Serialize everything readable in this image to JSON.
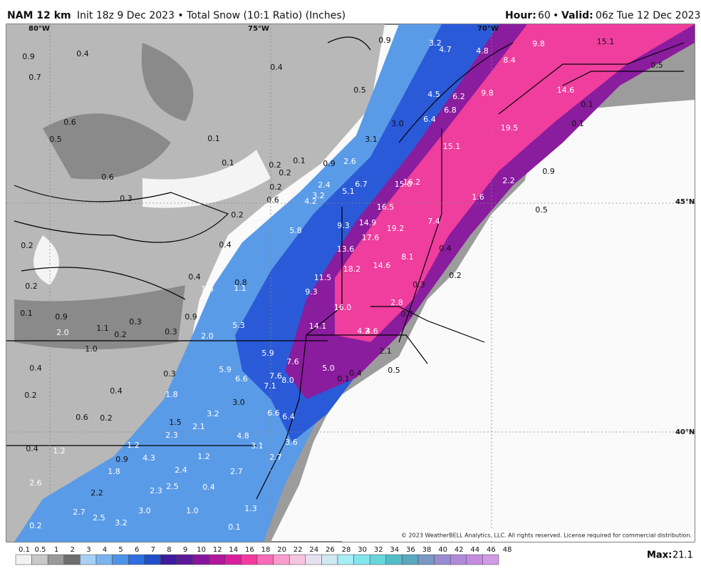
{
  "header": {
    "model": "NAM 12 km",
    "info": "Init 18z 9 Dec 2023 • Total Snow (10:1 Ratio) (Inches)",
    "hour_label": "Hour:",
    "hour": "60",
    "sep": "•",
    "valid_label": "Valid:",
    "valid": "06z Tue 12 Dec 2023"
  },
  "map": {
    "grid_labels": [
      "80°W",
      "75°W",
      "70°W",
      "45°N",
      "40°N"
    ],
    "copyright": "© 2023 WeatherBELL Analytics, LLC. All rights reserved. License required for commercial distribution.",
    "values": [
      "0.9",
      "0.4",
      "0.7",
      "0.6",
      "0.5",
      "0.1",
      "0.6",
      "0.3",
      "0.1",
      "0.4",
      "0.5",
      "0.9",
      "0.2",
      "0.2",
      "0.1",
      "0.2",
      "0.6",
      "0.9",
      "2.6",
      "2.4",
      "4.2",
      "3.2",
      "5.1",
      "6.7",
      "3.1",
      "3.0",
      "6.4",
      "6.8",
      "4.5",
      "6.2",
      "9.8",
      "3.2",
      "4.7",
      "4.8",
      "8.4",
      "9.8",
      "15.1",
      "0.5",
      "14.6",
      "0.1",
      "0.1",
      "19.5",
      "15.1",
      "0.9",
      "2.2",
      "1.6",
      "0.5",
      "15.0",
      "16.2",
      "16.5",
      "7.4",
      "0.2",
      "1.9",
      "5.8",
      "9.3",
      "14.9",
      "19.2",
      "17.6",
      "13.6",
      "18.2",
      "14.6",
      "8.1",
      "0.4",
      "0.2",
      "0.3",
      "0.4",
      "0.2",
      "0.2",
      "0.4",
      "1.6",
      "0.8",
      "1.1",
      "11.5",
      "9.3",
      "16.0",
      "2.8",
      "0.7",
      "0.1",
      "0.9",
      "1.1",
      "2.0",
      "0.2",
      "0.3",
      "0.3",
      "0.9",
      "2.0",
      "5.3",
      "14.1",
      "4.2",
      "4.6",
      "1.0",
      "0.4",
      "5.9",
      "7.6",
      "5.0",
      "2.1",
      "0.5",
      "0.4",
      "0.1",
      "0.3",
      "5.9",
      "6.6",
      "7.6",
      "8.0",
      "7.1",
      "0.2",
      "0.4",
      "1.8",
      "3.0",
      "0.6",
      "0.2",
      "3.2",
      "6.6",
      "6.4",
      "2.1",
      "2.3",
      "4.8",
      "1.5",
      "3.1",
      "3.6",
      "0.4",
      "1.2",
      "1.2",
      "1.2",
      "0.9",
      "4.3",
      "2.7",
      "1.8",
      "2.4",
      "2.7",
      "2.6",
      "2.5",
      "0.4",
      "2.2",
      "2.3",
      "2.7",
      "3.0",
      "1.0",
      "2.5",
      "3.2",
      "0.2",
      "1.3",
      "0.1"
    ]
  },
  "colorbar": {
    "ticks": [
      "0.1",
      "0.5",
      "1",
      "2",
      "3",
      "4",
      "5",
      "6",
      "7",
      "8",
      "9",
      "10",
      "12",
      "14",
      "16",
      "18",
      "20",
      "22",
      "24",
      "26",
      "28",
      "30",
      "32",
      "34",
      "36",
      "38",
      "40",
      "42",
      "44",
      "46",
      "48"
    ],
    "colors": [
      "#f2f2f2",
      "#c8c8c8",
      "#9a9a9a",
      "#6e6e6e",
      "#a8d0f5",
      "#7ab4f0",
      "#4f94e8",
      "#2f6fe0",
      "#1f4fc8",
      "#3a1c9c",
      "#5c1a9a",
      "#86159c",
      "#b0189e",
      "#d8209e",
      "#f23a9e",
      "#f86cb8",
      "#fa9ccc",
      "#f6c4dc",
      "#e6e0f0",
      "#cfe8f2",
      "#a8eef4",
      "#84e6ec",
      "#66d6dc",
      "#52bcc8",
      "#5aa8c0",
      "#7a98c4",
      "#9a8cd0",
      "#b08ad8",
      "#c48ce0",
      "#d09ae6"
    ],
    "max_label": "Max:",
    "max": "21.1"
  }
}
